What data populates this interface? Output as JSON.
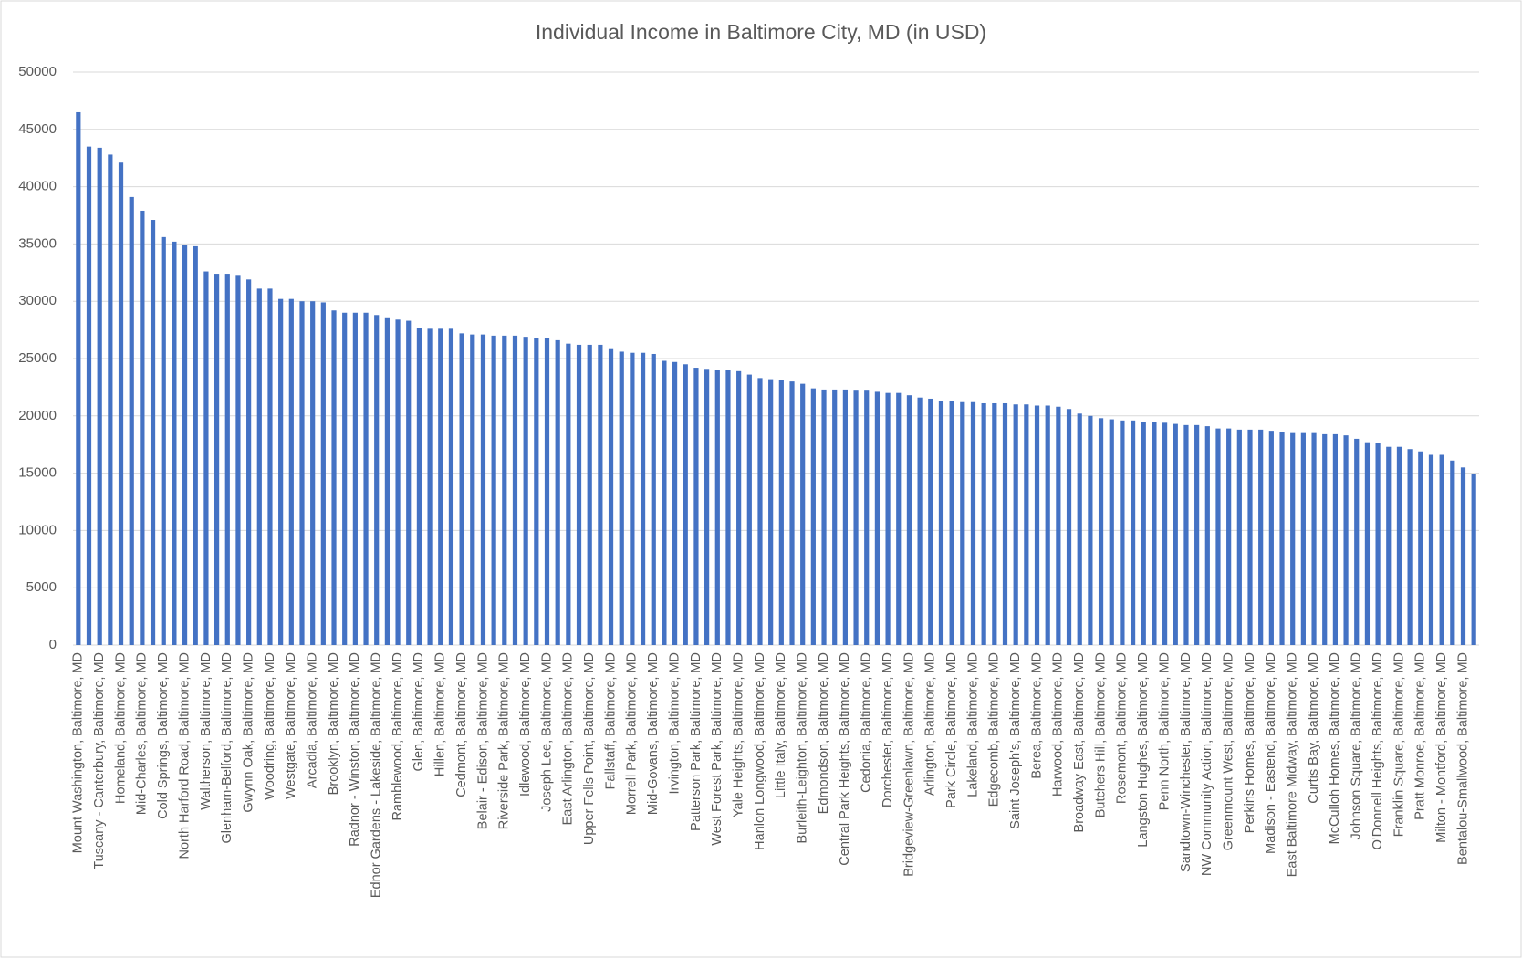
{
  "chart_data": {
    "type": "bar",
    "title": "Individual Income in Baltimore City, MD (in USD)",
    "categories": [
      "Mount Washington, Baltimore, MD",
      null,
      "Tuscany - Canterbury, Baltimore, MD",
      null,
      "Homeland, Baltimore, MD",
      null,
      "Mid-Charles, Baltimore, MD",
      null,
      "Cold Springs, Baltimore, MD",
      null,
      "North Harford Road, Baltimore, MD",
      null,
      "Waltherson, Baltimore, MD",
      null,
      "Glenham-Belford, Baltimore, MD",
      null,
      "Gwynn Oak, Baltimore, MD",
      null,
      "Woodring, Baltimore, MD",
      null,
      "Westgate, Baltimore, MD",
      null,
      "Arcadia, Baltimore, MD",
      null,
      "Brooklyn, Baltimore, MD",
      null,
      "Radnor - Winston, Baltimore, MD",
      null,
      "Ednor Gardens - Lakeside, Baltimore, MD",
      null,
      "Ramblewood, Baltimore, MD",
      null,
      "Glen, Baltimore, MD",
      null,
      "Hillen, Baltimore, MD",
      null,
      "Cedmont, Baltimore, MD",
      null,
      "Belair - Edison, Baltimore, MD",
      null,
      "Riverside Park, Baltimore, MD",
      null,
      "Idlewood, Baltimore, MD",
      null,
      "Joseph Lee, Baltimore, MD",
      null,
      "East Arlington, Baltimore, MD",
      null,
      "Upper Fells Point, Baltimore, MD",
      null,
      "Fallstaff, Baltimore, MD",
      null,
      "Morrell Park, Baltimore, MD",
      null,
      "Mid-Govans, Baltimore, MD",
      null,
      "Irvington, Baltimore, MD",
      null,
      "Patterson Park, Baltimore, MD",
      null,
      "West Forest Park, Baltimore, MD",
      null,
      "Yale Heights, Baltimore, MD",
      null,
      "Hanlon Longwood, Baltimore, MD",
      null,
      "Little Italy, Baltimore, MD",
      null,
      "Burleith-Leighton, Baltimore, MD",
      null,
      "Edmondson, Baltimore, MD",
      null,
      "Central Park Heights, Baltimore, MD",
      null,
      "Cedonia, Baltimore, MD",
      null,
      "Dorchester, Baltimore, MD",
      null,
      "Bridgeview-Greenlawn, Baltimore, MD",
      null,
      "Arlington, Baltimore, MD",
      null,
      "Park Circle, Baltimore, MD",
      null,
      "Lakeland, Baltimore, MD",
      null,
      "Edgecomb, Baltimore, MD",
      null,
      "Saint Joseph's, Baltimore, MD",
      null,
      "Berea, Baltimore, MD",
      null,
      "Harwood, Baltimore, MD",
      null,
      "Broadway East, Baltimore, MD",
      null,
      "Butchers Hill, Baltimore, MD",
      null,
      "Rosemont, Baltimore, MD",
      null,
      "Langston Hughes, Baltimore, MD",
      null,
      "Penn North, Baltimore, MD",
      null,
      "Sandtown-Winchester, Baltimore, MD",
      null,
      "NW Community Action, Baltimore, MD",
      null,
      "Greenmount West, Baltimore, MD",
      null,
      "Perkins Homes, Baltimore, MD",
      null,
      "Madison - Eastend, Baltimore, MD",
      null,
      "East Baltimore Midway, Baltimore, MD",
      null,
      "Curtis Bay, Baltimore, MD",
      null,
      "McCulloh Homes, Baltimore, MD",
      null,
      "Johnson Square, Baltimore, MD",
      null,
      "O'Donnell Heights, Baltimore, MD",
      null,
      "Franklin Square, Baltimore, MD",
      null,
      "Pratt Monroe, Baltimore, MD",
      null,
      "Milton - Montford, Baltimore, MD",
      null,
      "Bentalou-Smallwood, Baltimore, MD",
      null
    ],
    "values": [
      46500,
      43500,
      43400,
      42800,
      42100,
      39100,
      37900,
      37100,
      35600,
      35200,
      34900,
      34800,
      32600,
      32400,
      32400,
      32300,
      31900,
      31100,
      31100,
      30200,
      30200,
      30000,
      30000,
      29900,
      29200,
      29000,
      29000,
      29000,
      28800,
      28600,
      28400,
      28300,
      27700,
      27600,
      27600,
      27600,
      27200,
      27100,
      27100,
      27000,
      27000,
      27000,
      26900,
      26800,
      26800,
      26600,
      26300,
      26200,
      26200,
      26200,
      25900,
      25600,
      25500,
      25500,
      25400,
      24800,
      24700,
      24500,
      24200,
      24100,
      24000,
      24000,
      23900,
      23600,
      23300,
      23200,
      23100,
      23000,
      22800,
      22400,
      22300,
      22300,
      22300,
      22200,
      22200,
      22100,
      22000,
      22000,
      21800,
      21600,
      21500,
      21300,
      21300,
      21200,
      21200,
      21100,
      21100,
      21100,
      21000,
      21000,
      20900,
      20900,
      20800,
      20600,
      20200,
      20000,
      19800,
      19700,
      19600,
      19600,
      19500,
      19500,
      19400,
      19300,
      19200,
      19200,
      19100,
      18900,
      18900,
      18800,
      18800,
      18800,
      18700,
      18600,
      18500,
      18500,
      18500,
      18400,
      18400,
      18300,
      18000,
      17700,
      17600,
      17300,
      17300,
      17100,
      16900,
      16600,
      16600,
      16100,
      15500,
      14900
    ],
    "color": "#4472c4",
    "ylim": [
      0,
      50000
    ],
    "yticks": [
      0,
      5000,
      10000,
      15000,
      20000,
      25000,
      30000,
      35000,
      40000,
      45000,
      50000
    ],
    "grid": true
  }
}
